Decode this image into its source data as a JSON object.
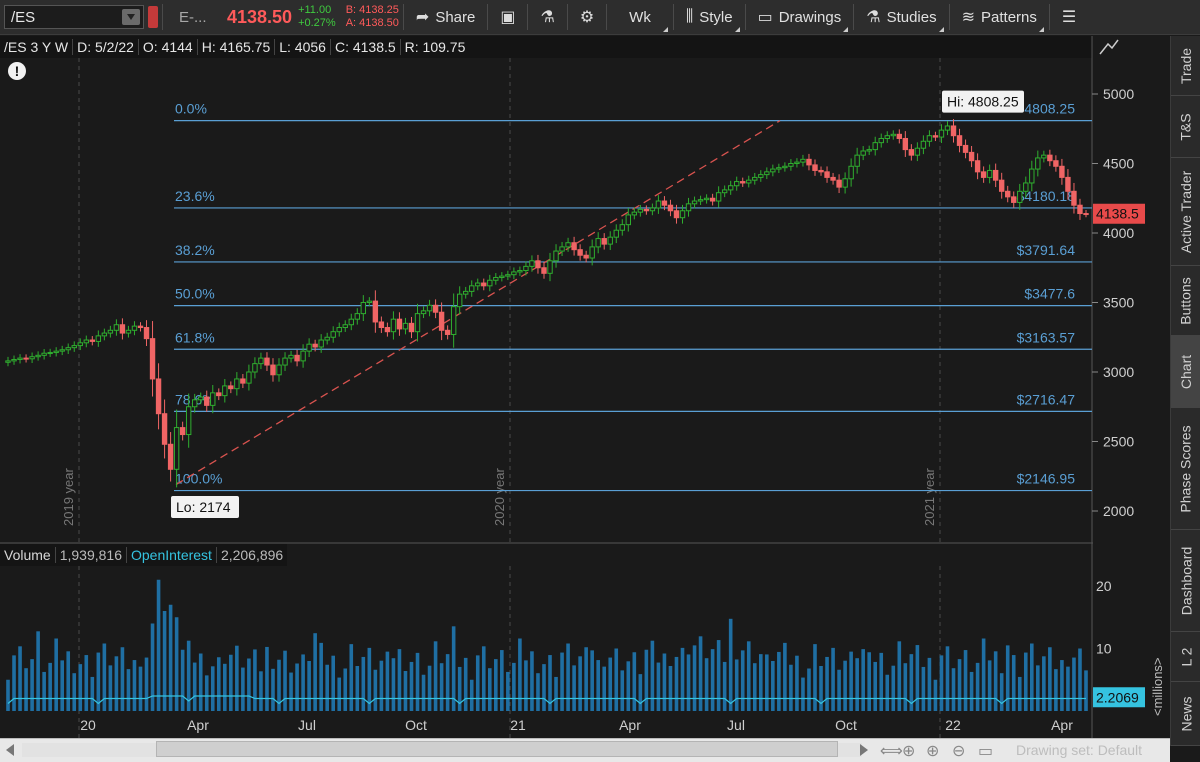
{
  "toolbar": {
    "symbol": "/ES",
    "exchange_name": "E-...",
    "last_price": "4138.50",
    "net_change": "+11.00",
    "net_change_pct": "+0.27%",
    "bid": "B: 4138.25",
    "ask": "A: 4138.50",
    "share_label": "Share",
    "timeframe_label": "Wk",
    "style_label": "Style",
    "drawings_label": "Drawings",
    "studies_label": "Studies",
    "patterns_label": "Patterns"
  },
  "info": {
    "title": "/ES 3 Y W",
    "date": "D: 5/2/22",
    "open": "O: 4144",
    "high": "H: 4165.75",
    "low": "L: 4056",
    "close": "C: 4138.5",
    "range": "R: 109.75"
  },
  "chart_data": {
    "type": "candlestick",
    "y_axis_ticks": [
      2000,
      2500,
      3000,
      3500,
      4000,
      4500,
      5000
    ],
    "x_axis_labels": [
      "20",
      "Apr",
      "Jul",
      "Oct",
      "21",
      "Apr",
      "Jul",
      "Oct",
      "22",
      "Apr"
    ],
    "year_markers": [
      "2019 year",
      "2020 year",
      "2021 year"
    ],
    "current_price_label": "4138.5",
    "fibonacci": [
      {
        "level": "0.0%",
        "price": 4808.25,
        "price_label": "4808.25"
      },
      {
        "level": "23.6%",
        "price": 4180.18,
        "price_label": "$4180.18"
      },
      {
        "level": "38.2%",
        "price": 3791.64,
        "price_label": "$3791.64"
      },
      {
        "level": "50.0%",
        "price": 3477.6,
        "price_label": "$3477.6"
      },
      {
        "level": "61.8%",
        "price": 3163.57,
        "price_label": "$3163.57"
      },
      {
        "level": "78.6%",
        "price": 2716.47,
        "price_label": "$2716.47"
      },
      {
        "level": "100.0%",
        "price": 2146.95,
        "price_label": "$2146.95"
      }
    ],
    "hi_label": "Hi: 4808.25",
    "lo_label": "Lo: 2174",
    "closes": [
      3080,
      3090,
      3100,
      3095,
      3110,
      3120,
      3135,
      3140,
      3150,
      3160,
      3175,
      3190,
      3210,
      3230,
      3220,
      3260,
      3280,
      3300,
      3340,
      3280,
      3300,
      3330,
      3320,
      3240,
      2950,
      2700,
      2480,
      2300,
      2600,
      2550,
      2750,
      2800,
      2820,
      2760,
      2850,
      2830,
      2900,
      2880,
      2950,
      2920,
      3000,
      3060,
      3100,
      3050,
      2980,
      3050,
      3100,
      3120,
      3080,
      3150,
      3200,
      3180,
      3230,
      3250,
      3290,
      3320,
      3340,
      3380,
      3420,
      3500,
      3510,
      3360,
      3320,
      3290,
      3380,
      3310,
      3350,
      3290,
      3420,
      3440,
      3480,
      3430,
      3300,
      3270,
      3470,
      3560,
      3580,
      3620,
      3640,
      3620,
      3660,
      3680,
      3690,
      3700,
      3720,
      3730,
      3760,
      3800,
      3750,
      3710,
      3800,
      3870,
      3900,
      3930,
      3880,
      3840,
      3820,
      3900,
      3960,
      3920,
      3970,
      4020,
      4060,
      4130,
      4150,
      4170,
      4160,
      4180,
      4230,
      4200,
      4160,
      4110,
      4160,
      4210,
      4230,
      4240,
      4250,
      4230,
      4290,
      4310,
      4340,
      4370,
      4360,
      4380,
      4400,
      4420,
      4440,
      4460,
      4470,
      4480,
      4500,
      4510,
      4530,
      4490,
      4450,
      4440,
      4400,
      4380,
      4330,
      4390,
      4480,
      4560,
      4590,
      4600,
      4650,
      4680,
      4700,
      4710,
      4680,
      4600,
      4560,
      4610,
      4660,
      4700,
      4690,
      4740,
      4770,
      4700,
      4630,
      4580,
      4520,
      4440,
      4400,
      4450,
      4380,
      4300,
      4260,
      4220,
      4300,
      4360,
      4460,
      4540,
      4560,
      4520,
      4480,
      4400,
      4300,
      4200,
      4140,
      4138.5
    ],
    "volume_axis": {
      "ticks": [
        10,
        20
      ],
      "unit_label": "<millions>",
      "oi_label": "2.2069"
    }
  },
  "volume": {
    "label": "Volume",
    "value": "1,939,816",
    "oi_label": "OpenInterest",
    "oi_value": "2,206,896"
  },
  "right_tabs": [
    "Trade",
    "T&S",
    "Active Trader",
    "Buttons",
    "Chart",
    "Phase Scores",
    "Dashboard",
    "L 2",
    "News"
  ],
  "scrollbar": {
    "drawing_set": "Drawing set: Default"
  },
  "colors": {
    "up": "#2fae2f",
    "down": "#f06565",
    "fib": "#5a9fd4",
    "trend": "#d9534f",
    "volume": "#1f6fa3",
    "oi_line": "#35c3e0"
  }
}
